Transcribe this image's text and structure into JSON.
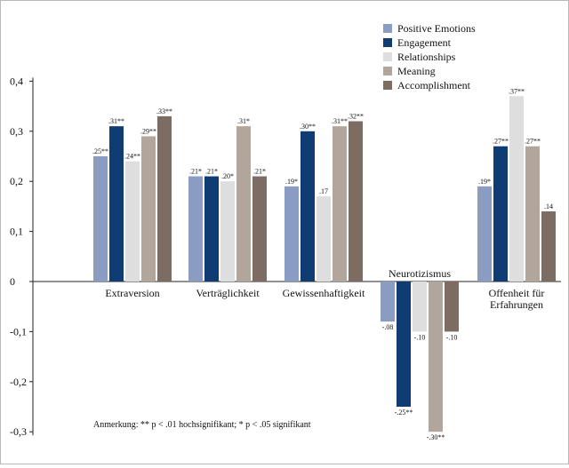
{
  "chart_data": {
    "type": "bar",
    "categories": [
      "Extraversion",
      "Verträglichkeit",
      "Gewissenhaftigkeit",
      "Neurotizismus",
      "Offenheit für Erfahrungen"
    ],
    "category_lines": [
      [
        "Extraversion"
      ],
      [
        "Verträglichkeit"
      ],
      [
        "Gewissenhaftigkeit"
      ],
      [
        "Neurotizismus"
      ],
      [
        "Offenheit für",
        "Erfahrungen"
      ]
    ],
    "series": [
      {
        "name": "Positive Emotions",
        "color": "#8a9cc2",
        "values": [
          0.25,
          0.21,
          0.19,
          -0.08,
          0.19
        ],
        "labels": [
          ".25**",
          ".21*",
          ".19*",
          "-.08",
          ".19*"
        ]
      },
      {
        "name": "Engagement",
        "color": "#0f3d73",
        "values": [
          0.31,
          0.21,
          0.3,
          -0.25,
          0.27
        ],
        "labels": [
          ".31**",
          ".21*",
          ".30**",
          "-.25**",
          ".27**"
        ]
      },
      {
        "name": "Relationships",
        "color": "#dedede",
        "values": [
          0.24,
          0.2,
          0.17,
          -0.1,
          0.37
        ],
        "labels": [
          ".24**",
          ".20*",
          ".17",
          "-.10",
          ".37**"
        ]
      },
      {
        "name": "Meaning",
        "color": "#b2a69c",
        "values": [
          0.29,
          0.31,
          0.31,
          -0.3,
          0.27
        ],
        "labels": [
          ".29**",
          ".31*",
          ".31**",
          "-.30**",
          ".27**"
        ]
      },
      {
        "name": "Accomplishment",
        "color": "#7c6c62",
        "values": [
          0.33,
          0.21,
          0.32,
          -0.1,
          0.14
        ],
        "labels": [
          ".33**",
          ".21*",
          ".32**",
          "-.10",
          ".14"
        ]
      }
    ],
    "yticks": [
      0.4,
      0.3,
      0.2,
      0.1,
      0,
      -0.1,
      -0.2,
      -0.3
    ],
    "ytick_labels": [
      "0,4",
      "0,3",
      "0,2",
      "0,1",
      "0",
      "-0,1",
      "-0,2",
      "-0,3"
    ],
    "ylim": [
      -0.3,
      0.4
    ],
    "grid": false,
    "legend_position": "top-right",
    "title": "",
    "xlabel": "",
    "ylabel": "",
    "annotation": "Anmerkung: ** p < .01 hochsignifikant; * p < .05 signifikant"
  }
}
